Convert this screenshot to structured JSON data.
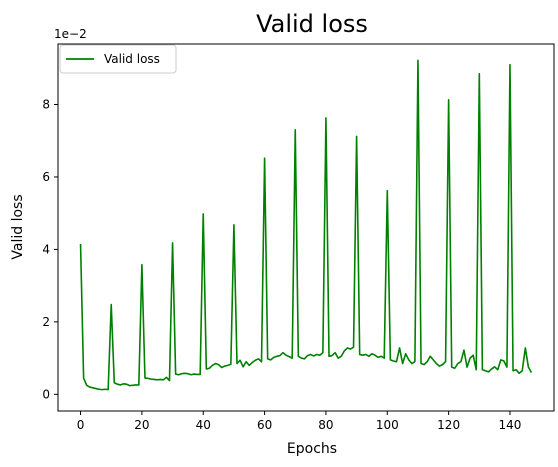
{
  "chart_data": {
    "type": "line",
    "title": "Valid loss",
    "xlabel": "Epochs",
    "ylabel": "Valid loss",
    "xlim": [
      -7.35,
      154.35
    ],
    "ylim": [
      -0.0046,
      0.0967
    ],
    "xticks": [
      0,
      20,
      40,
      60,
      80,
      100,
      120,
      140
    ],
    "yticks": [
      0,
      0.02,
      0.04,
      0.06,
      0.08
    ],
    "ytick_labels": [
      "0",
      "2",
      "4",
      "6",
      "8"
    ],
    "y_offset_label": "1e−2",
    "grid": false,
    "legend": "upper-left",
    "series": [
      {
        "name": "Valid loss",
        "color": "#008000",
        "x": [
          0,
          1,
          2,
          3,
          4,
          5,
          6,
          7,
          8,
          9,
          10,
          11,
          12,
          13,
          14,
          15,
          16,
          17,
          18,
          19,
          20,
          21,
          22,
          23,
          24,
          25,
          26,
          27,
          28,
          29,
          30,
          31,
          32,
          33,
          34,
          35,
          36,
          37,
          38,
          39,
          40,
          41,
          42,
          43,
          44,
          45,
          46,
          47,
          48,
          49,
          50,
          51,
          52,
          53,
          54,
          55,
          56,
          57,
          58,
          59,
          60,
          61,
          62,
          63,
          64,
          65,
          66,
          67,
          68,
          69,
          70,
          71,
          72,
          73,
          74,
          75,
          76,
          77,
          78,
          79,
          80,
          81,
          82,
          83,
          84,
          85,
          86,
          87,
          88,
          89,
          90,
          91,
          92,
          93,
          94,
          95,
          96,
          97,
          98,
          99,
          100,
          101,
          102,
          103,
          104,
          105,
          106,
          107,
          108,
          109,
          110,
          111,
          112,
          113,
          114,
          115,
          116,
          117,
          118,
          119,
          120,
          121,
          122,
          123,
          124,
          125,
          126,
          127,
          128,
          129,
          130,
          131,
          132,
          133,
          134,
          135,
          136,
          137,
          138,
          139,
          140,
          141,
          142,
          143,
          144,
          145,
          146,
          147
        ],
        "y": [
          0.0415,
          0.0045,
          0.0025,
          0.002,
          0.0018,
          0.0016,
          0.0014,
          0.0013,
          0.0014,
          0.0013,
          0.0248,
          0.0032,
          0.0028,
          0.0026,
          0.0029,
          0.0028,
          0.0024,
          0.0025,
          0.0026,
          0.0026,
          0.0358,
          0.0045,
          0.0044,
          0.0042,
          0.0041,
          0.004,
          0.0041,
          0.004,
          0.0047,
          0.0038,
          0.0418,
          0.0056,
          0.0054,
          0.0057,
          0.0058,
          0.0057,
          0.0054,
          0.0056,
          0.0055,
          0.0055,
          0.0498,
          0.007,
          0.0072,
          0.008,
          0.0085,
          0.0082,
          0.0074,
          0.0078,
          0.008,
          0.0083,
          0.0468,
          0.0085,
          0.0094,
          0.0076,
          0.009,
          0.008,
          0.0088,
          0.0094,
          0.0098,
          0.009,
          0.0652,
          0.0098,
          0.0095,
          0.0102,
          0.0105,
          0.0107,
          0.0115,
          0.0108,
          0.0104,
          0.01,
          0.073,
          0.0105,
          0.01,
          0.0098,
          0.0107,
          0.011,
          0.0106,
          0.011,
          0.0108,
          0.0115,
          0.0763,
          0.0105,
          0.0107,
          0.0115,
          0.01,
          0.0105,
          0.012,
          0.0128,
          0.0125,
          0.013,
          0.0712,
          0.011,
          0.0108,
          0.011,
          0.0105,
          0.0112,
          0.0108,
          0.0102,
          0.0105,
          0.01,
          0.0562,
          0.0095,
          0.0092,
          0.009,
          0.0128,
          0.0085,
          0.0112,
          0.0095,
          0.0085,
          0.009,
          0.0922,
          0.0085,
          0.0082,
          0.009,
          0.0105,
          0.0095,
          0.0085,
          0.0078,
          0.0082,
          0.009,
          0.0813,
          0.0075,
          0.0072,
          0.0085,
          0.009,
          0.0122,
          0.0075,
          0.01,
          0.0108,
          0.0068,
          0.0885,
          0.0068,
          0.0065,
          0.0062,
          0.007,
          0.0076,
          0.0068,
          0.0095,
          0.0092,
          0.0075,
          0.091,
          0.0065,
          0.0068,
          0.0058,
          0.0065,
          0.0128,
          0.0075,
          0.006
        ]
      }
    ]
  }
}
